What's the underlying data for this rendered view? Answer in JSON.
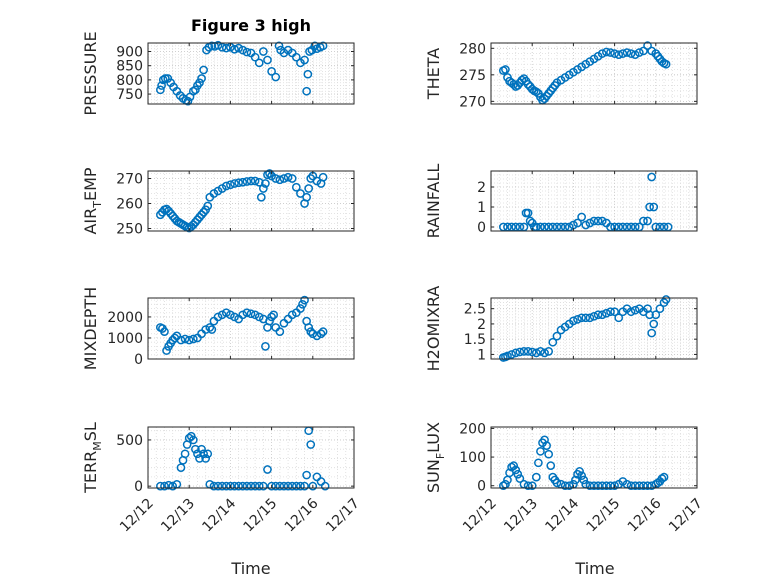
{
  "figure": {
    "title": "Figure 3 high",
    "xlabel": "Time",
    "marker_color": "#0072bd"
  },
  "chart_data": [
    {
      "type": "scatter",
      "ylabel": "PRESSURE",
      "ylabel_sub": "",
      "ylabel_tail": "",
      "xlim": [
        0,
        5
      ],
      "ylim": [
        715,
        930
      ],
      "yticks": [
        750,
        800,
        850,
        900
      ],
      "xticks": [
        "12/12",
        "12/13",
        "12/14",
        "12/15",
        "12/16",
        "12/17"
      ],
      "show_xticklabels": false,
      "title": "Figure 3 high",
      "x": [
        0.3,
        0.33,
        0.37,
        0.42,
        0.48,
        0.55,
        0.62,
        0.7,
        0.78,
        0.85,
        0.92,
        0.97,
        1.02,
        1.1,
        1.15,
        1.2,
        1.25,
        1.3,
        1.35,
        1.42,
        1.48,
        1.55,
        1.62,
        1.7,
        1.8,
        1.9,
        2.0,
        2.1,
        2.2,
        2.3,
        2.4,
        2.5,
        2.6,
        2.7,
        2.8,
        2.9,
        3.0,
        3.1,
        3.18,
        3.22,
        3.3,
        3.4,
        3.5,
        3.6,
        3.7,
        3.8,
        3.85,
        3.88,
        3.92,
        3.98,
        4.05,
        4.1,
        4.18,
        4.25
      ],
      "y": [
        765,
        780,
        800,
        805,
        805,
        790,
        775,
        760,
        745,
        735,
        728,
        725,
        740,
        760,
        765,
        780,
        790,
        805,
        835,
        905,
        915,
        920,
        918,
        922,
        915,
        912,
        915,
        908,
        912,
        905,
        898,
        895,
        880,
        860,
        900,
        870,
        830,
        810,
        920,
        905,
        895,
        905,
        895,
        880,
        860,
        870,
        760,
        820,
        900,
        905,
        920,
        910,
        915,
        920
      ]
    },
    {
      "type": "scatter",
      "ylabel": "THETA",
      "ylabel_sub": "",
      "ylabel_tail": "",
      "xlim": [
        0,
        5
      ],
      "ylim": [
        269.5,
        281
      ],
      "yticks": [
        270,
        275,
        280
      ],
      "xticks": [
        "12/12",
        "12/13",
        "12/14",
        "12/15",
        "12/16",
        "12/17"
      ],
      "show_xticklabels": false,
      "title": "",
      "x": [
        0.3,
        0.35,
        0.4,
        0.45,
        0.5,
        0.55,
        0.6,
        0.65,
        0.7,
        0.75,
        0.8,
        0.85,
        0.9,
        0.95,
        1.0,
        1.05,
        1.1,
        1.15,
        1.2,
        1.25,
        1.3,
        1.35,
        1.4,
        1.45,
        1.5,
        1.55,
        1.6,
        1.7,
        1.8,
        1.9,
        2.0,
        2.1,
        2.2,
        2.3,
        2.4,
        2.5,
        2.6,
        2.7,
        2.8,
        2.9,
        3.0,
        3.1,
        3.2,
        3.3,
        3.4,
        3.5,
        3.6,
        3.7,
        3.8,
        3.9,
        4.0,
        4.05,
        4.1,
        4.15,
        4.2,
        4.25
      ],
      "y": [
        275.8,
        276.0,
        274.5,
        273.8,
        273.5,
        273.2,
        272.8,
        273.0,
        273.5,
        274.0,
        274.3,
        273.8,
        273.2,
        272.8,
        272.3,
        272.0,
        271.8,
        271.5,
        270.8,
        270.2,
        270.5,
        271.0,
        271.5,
        272.0,
        272.5,
        273.0,
        273.5,
        274.0,
        274.5,
        275.0,
        275.5,
        276.0,
        276.5,
        277.0,
        277.5,
        278.0,
        278.5,
        279.0,
        279.3,
        279.2,
        279.0,
        278.8,
        279.0,
        279.2,
        279.0,
        278.8,
        279.2,
        279.5,
        280.5,
        279.5,
        279.0,
        278.5,
        278.0,
        277.5,
        277.2,
        277.0
      ]
    },
    {
      "type": "scatter",
      "ylabel": "AIR",
      "ylabel_sub": "T",
      "ylabel_tail": "EMP",
      "xlim": [
        0,
        5
      ],
      "ylim": [
        249,
        273
      ],
      "yticks": [
        250,
        260,
        270
      ],
      "xticks": [
        "12/12",
        "12/13",
        "12/14",
        "12/15",
        "12/16",
        "12/17"
      ],
      "show_xticklabels": false,
      "title": "",
      "x": [
        0.3,
        0.35,
        0.4,
        0.45,
        0.5,
        0.55,
        0.6,
        0.65,
        0.7,
        0.75,
        0.8,
        0.85,
        0.9,
        0.95,
        1.0,
        1.05,
        1.1,
        1.15,
        1.2,
        1.25,
        1.3,
        1.35,
        1.4,
        1.45,
        1.5,
        1.6,
        1.7,
        1.8,
        1.9,
        2.0,
        2.1,
        2.2,
        2.3,
        2.4,
        2.5,
        2.6,
        2.7,
        2.75,
        2.8,
        2.85,
        2.9,
        2.95,
        3.0,
        3.1,
        3.2,
        3.3,
        3.4,
        3.5,
        3.6,
        3.7,
        3.8,
        3.85,
        3.9,
        3.95,
        4.0,
        4.1,
        4.2,
        4.25
      ],
      "y": [
        255.5,
        256.5,
        257.5,
        257.8,
        257.0,
        256.0,
        255.0,
        254.0,
        253.0,
        252.5,
        252.0,
        251.5,
        251.0,
        250.5,
        250.2,
        250.8,
        251.5,
        252.5,
        253.5,
        254.5,
        255.5,
        256.5,
        257.5,
        259.0,
        262.5,
        264.0,
        265.0,
        266.0,
        267.0,
        267.5,
        268.0,
        268.3,
        268.5,
        268.8,
        269.0,
        269.0,
        268.5,
        262.5,
        266.0,
        268.0,
        271.5,
        272.0,
        271.0,
        270.0,
        269.5,
        270.0,
        270.5,
        270.0,
        266.5,
        264.0,
        260.0,
        262.5,
        266.0,
        270.0,
        271.0,
        269.0,
        268.0,
        270.5
      ]
    },
    {
      "type": "scatter",
      "ylabel": "RAINFALL",
      "ylabel_sub": "",
      "ylabel_tail": "",
      "xlim": [
        0,
        5
      ],
      "ylim": [
        -0.2,
        2.8
      ],
      "yticks": [
        0,
        1,
        2
      ],
      "xticks": [
        "12/12",
        "12/13",
        "12/14",
        "12/15",
        "12/16",
        "12/17"
      ],
      "show_xticklabels": false,
      "title": "",
      "x": [
        0.3,
        0.4,
        0.5,
        0.6,
        0.7,
        0.8,
        0.85,
        0.9,
        0.95,
        1.0,
        1.05,
        1.1,
        1.2,
        1.3,
        1.4,
        1.5,
        1.6,
        1.7,
        1.8,
        1.9,
        2.0,
        2.1,
        2.2,
        2.3,
        2.4,
        2.5,
        2.6,
        2.7,
        2.8,
        2.9,
        3.0,
        3.1,
        3.2,
        3.3,
        3.4,
        3.5,
        3.6,
        3.7,
        3.8,
        3.85,
        3.9,
        3.95,
        4.0,
        4.1,
        4.2,
        4.3
      ],
      "y": [
        0,
        0,
        0,
        0,
        0,
        0,
        0.7,
        0.7,
        0.3,
        0.2,
        0,
        0,
        0,
        0,
        0,
        0,
        0,
        0,
        0,
        0,
        0.1,
        0.2,
        0.5,
        0.1,
        0.2,
        0.3,
        0.3,
        0.3,
        0.2,
        0,
        0,
        0,
        0,
        0,
        0,
        0,
        0,
        0.3,
        0.3,
        1.0,
        2.5,
        1.0,
        0,
        0,
        0,
        0
      ]
    },
    {
      "type": "scatter",
      "ylabel": "MIXDEPTH",
      "ylabel_sub": "",
      "ylabel_tail": "",
      "xlim": [
        0,
        5
      ],
      "ylim": [
        0,
        2900
      ],
      "yticks": [
        0,
        1000,
        2000
      ],
      "xticks": [
        "12/12",
        "12/13",
        "12/14",
        "12/15",
        "12/16",
        "12/17"
      ],
      "show_xticklabels": false,
      "title": "",
      "x": [
        0.3,
        0.35,
        0.4,
        0.45,
        0.5,
        0.55,
        0.6,
        0.65,
        0.7,
        0.8,
        0.9,
        1.0,
        1.1,
        1.2,
        1.3,
        1.4,
        1.5,
        1.55,
        1.6,
        1.7,
        1.8,
        1.9,
        2.0,
        2.1,
        2.2,
        2.3,
        2.4,
        2.5,
        2.6,
        2.7,
        2.8,
        2.85,
        2.9,
        2.95,
        3.0,
        3.05,
        3.1,
        3.2,
        3.3,
        3.4,
        3.5,
        3.6,
        3.7,
        3.75,
        3.8,
        3.85,
        3.9,
        3.95,
        4.0,
        4.1,
        4.2,
        4.25
      ],
      "y": [
        1500,
        1450,
        1300,
        400,
        600,
        750,
        900,
        1000,
        1100,
        900,
        950,
        900,
        950,
        1000,
        1200,
        1400,
        1500,
        1400,
        1800,
        2000,
        2100,
        2200,
        2100,
        2000,
        1900,
        2100,
        2200,
        2150,
        2100,
        2000,
        1900,
        600,
        1500,
        1800,
        2000,
        2100,
        1500,
        1300,
        1700,
        1900,
        2100,
        2200,
        2400,
        2600,
        2800,
        1800,
        1500,
        1300,
        1200,
        1100,
        1200,
        1300
      ]
    },
    {
      "type": "scatter",
      "ylabel": "H2OMIXRA",
      "ylabel_sub": "",
      "ylabel_tail": "",
      "xlim": [
        0,
        5
      ],
      "ylim": [
        0.85,
        2.85
      ],
      "yticks": [
        1,
        1.5,
        2,
        2.5
      ],
      "xticks": [
        "12/12",
        "12/13",
        "12/14",
        "12/15",
        "12/16",
        "12/17"
      ],
      "show_xticklabels": false,
      "title": "",
      "x": [
        0.3,
        0.35,
        0.4,
        0.5,
        0.6,
        0.7,
        0.8,
        0.9,
        1.0,
        1.1,
        1.2,
        1.3,
        1.4,
        1.5,
        1.6,
        1.7,
        1.8,
        1.9,
        2.0,
        2.1,
        2.2,
        2.3,
        2.4,
        2.5,
        2.6,
        2.7,
        2.8,
        2.9,
        3.0,
        3.1,
        3.2,
        3.3,
        3.4,
        3.5,
        3.6,
        3.7,
        3.8,
        3.85,
        3.9,
        3.95,
        4.0,
        4.1,
        4.2,
        4.25
      ],
      "y": [
        0.9,
        0.92,
        0.95,
        1.0,
        1.05,
        1.08,
        1.1,
        1.1,
        1.08,
        1.05,
        1.1,
        1.05,
        1.1,
        1.4,
        1.6,
        1.8,
        1.9,
        2.0,
        2.1,
        2.15,
        2.2,
        2.2,
        2.2,
        2.25,
        2.3,
        2.3,
        2.35,
        2.4,
        2.4,
        2.2,
        2.4,
        2.5,
        2.4,
        2.45,
        2.5,
        2.4,
        2.5,
        2.3,
        1.7,
        2.0,
        2.3,
        2.5,
        2.7,
        2.8
      ]
    },
    {
      "type": "scatter",
      "ylabel": "TERR",
      "ylabel_sub": "M",
      "ylabel_tail": "SL",
      "xlim": [
        0,
        5
      ],
      "ylim": [
        -20,
        640
      ],
      "yticks": [
        0,
        500
      ],
      "xticks": [
        "12/12",
        "12/13",
        "12/14",
        "12/15",
        "12/16",
        "12/17"
      ],
      "show_xticklabels": true,
      "title": "",
      "x": [
        0.3,
        0.4,
        0.5,
        0.6,
        0.7,
        0.8,
        0.85,
        0.9,
        0.95,
        1.0,
        1.05,
        1.1,
        1.15,
        1.2,
        1.25,
        1.3,
        1.35,
        1.4,
        1.45,
        1.5,
        1.6,
        1.7,
        1.8,
        1.9,
        2.0,
        2.1,
        2.2,
        2.3,
        2.4,
        2.5,
        2.6,
        2.7,
        2.8,
        2.9,
        3.0,
        3.1,
        3.2,
        3.3,
        3.4,
        3.5,
        3.6,
        3.7,
        3.8,
        3.85,
        3.9,
        3.95,
        4.0,
        4.1,
        4.2,
        4.3
      ],
      "y": [
        0,
        0,
        10,
        0,
        20,
        200,
        280,
        350,
        450,
        520,
        540,
        500,
        400,
        350,
        300,
        400,
        350,
        300,
        350,
        20,
        0,
        0,
        0,
        0,
        0,
        0,
        0,
        0,
        0,
        0,
        0,
        0,
        0,
        180,
        0,
        0,
        0,
        0,
        0,
        0,
        0,
        0,
        0,
        120,
        600,
        450,
        0,
        100,
        50,
        0
      ]
    },
    {
      "type": "scatter",
      "ylabel": "SUN",
      "ylabel_sub": "F",
      "ylabel_tail": "LUX",
      "xlim": [
        0,
        5
      ],
      "ylim": [
        -8,
        205
      ],
      "yticks": [
        0,
        100,
        200
      ],
      "xticks": [
        "12/12",
        "12/13",
        "12/14",
        "12/15",
        "12/16",
        "12/17"
      ],
      "show_xticklabels": true,
      "title": "",
      "x": [
        0.3,
        0.35,
        0.4,
        0.45,
        0.5,
        0.55,
        0.6,
        0.65,
        0.7,
        0.8,
        0.9,
        1.0,
        1.1,
        1.15,
        1.2,
        1.25,
        1.3,
        1.35,
        1.4,
        1.45,
        1.5,
        1.55,
        1.6,
        1.7,
        1.8,
        1.9,
        2.0,
        2.05,
        2.1,
        2.15,
        2.2,
        2.25,
        2.3,
        2.4,
        2.5,
        2.6,
        2.7,
        2.8,
        2.9,
        3.0,
        3.1,
        3.2,
        3.3,
        3.4,
        3.5,
        3.6,
        3.7,
        3.8,
        3.9,
        4.0,
        4.05,
        4.1,
        4.15,
        4.2
      ],
      "y": [
        0,
        5,
        20,
        45,
        65,
        70,
        55,
        40,
        25,
        5,
        0,
        0,
        30,
        80,
        120,
        150,
        160,
        140,
        110,
        70,
        30,
        20,
        10,
        5,
        0,
        0,
        5,
        20,
        40,
        50,
        35,
        20,
        5,
        0,
        0,
        0,
        0,
        0,
        0,
        0,
        5,
        15,
        5,
        0,
        0,
        0,
        0,
        0,
        0,
        5,
        10,
        15,
        25,
        30
      ]
    }
  ]
}
